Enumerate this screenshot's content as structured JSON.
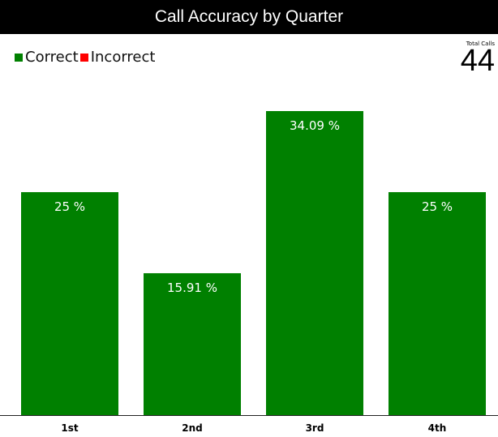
{
  "header": {
    "title": "Call Accuracy by Quarter"
  },
  "legend": [
    {
      "label": "Correct",
      "color": "#008000"
    },
    {
      "label": "Incorrect",
      "color": "#ff0000"
    }
  ],
  "total": {
    "label": "Total Calls",
    "value": "44"
  },
  "chart_data": {
    "type": "bar",
    "title": "Call Accuracy by Quarter",
    "categories": [
      "1st",
      "2nd",
      "3rd",
      "4th"
    ],
    "series": [
      {
        "name": "Correct",
        "color": "#008000",
        "values": [
          25,
          15.91,
          34.09,
          25
        ],
        "labels": [
          "25 %",
          "15.91 %",
          "34.09 %",
          "25 %"
        ]
      },
      {
        "name": "Incorrect",
        "color": "#ff0000",
        "values": [
          0,
          0,
          0,
          0
        ]
      }
    ],
    "ylim": [
      0,
      34.09
    ],
    "grid": false,
    "legend_position": "top-left"
  }
}
